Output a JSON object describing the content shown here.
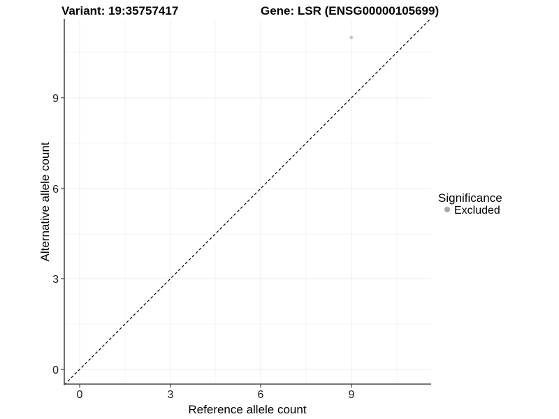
{
  "chart_data": {
    "type": "scatter",
    "title_left": "Variant: 19:35757417",
    "title_right": "Gene: LSR (ENSG00000105699)",
    "xlabel": "Reference allele count",
    "ylabel": "Alternative allele count",
    "xticks": [
      "0",
      "3",
      "6",
      "9"
    ],
    "yticks": [
      "0",
      "3",
      "6",
      "9"
    ],
    "xlim": [
      -0.5,
      11.6
    ],
    "ylim": [
      -0.5,
      11.6
    ],
    "grid": "on",
    "points": [
      {
        "x": 9,
        "y": 11,
        "series": "Excluded"
      }
    ],
    "point_color": "#c2c2c2",
    "point_radius": 2.3,
    "identity_line": {
      "style": "dashed",
      "color": "#000000",
      "from": [
        -0.51,
        -0.51
      ],
      "to": [
        11.62,
        11.62
      ]
    },
    "legend": {
      "position": "right",
      "title": "Significance",
      "entries": [
        {
          "label": "Excluded",
          "color": "#a6a6a6"
        }
      ]
    },
    "colors": {
      "background": "#ffffff",
      "grid_major": "#ececec",
      "grid_minor": "#f3f3f3",
      "axis_line": "#4a4a4a",
      "tick_label": "#1a1a1a"
    }
  }
}
